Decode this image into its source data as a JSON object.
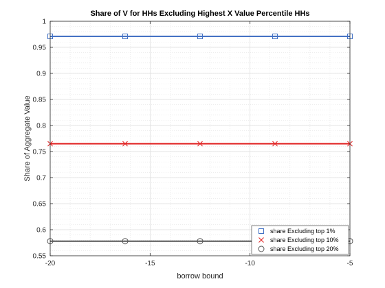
{
  "chart_data": {
    "type": "line",
    "title": "Share of V for HHs Excluding Highest X Value Percentile HHs",
    "xlabel": "borrow bound",
    "ylabel": "Share of Aggregate Value",
    "xlim": [
      -20,
      -5
    ],
    "ylim": [
      0.55,
      1
    ],
    "xticks": [
      -20,
      -15,
      -10,
      -5
    ],
    "xtick_labels": [
      "-20",
      "-15",
      "-10",
      "-5"
    ],
    "yticks": [
      0.55,
      0.6,
      0.65,
      0.7,
      0.75,
      0.8,
      0.85,
      0.9,
      0.95,
      1
    ],
    "ytick_labels": [
      "0.55",
      "0.6",
      "0.65",
      "0.7",
      "0.75",
      "0.8",
      "0.85",
      "0.9",
      "0.95",
      "1"
    ],
    "grid": true,
    "minor_grid": true,
    "legend_position": "bottom-right",
    "x": [
      -20,
      -16.25,
      -12.5,
      -8.75,
      -5
    ],
    "series": [
      {
        "name": "share Excluding top 1%",
        "values": [
          0.971,
          0.971,
          0.971,
          0.971,
          0.971
        ],
        "color": "#4472c4",
        "marker": "square"
      },
      {
        "name": "share Excluding top 10%",
        "values": [
          0.765,
          0.765,
          0.765,
          0.765,
          0.765
        ],
        "color": "#e02020",
        "marker": "x"
      },
      {
        "name": "share Excluding top 20%",
        "values": [
          0.578,
          0.578,
          0.578,
          0.578,
          0.578
        ],
        "color": "#555555",
        "marker": "circle"
      }
    ]
  }
}
